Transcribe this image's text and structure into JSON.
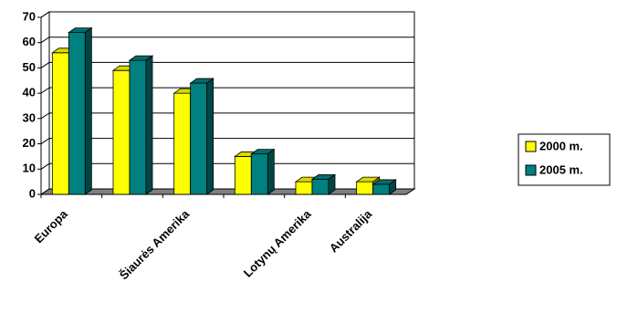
{
  "chart_data": {
    "type": "bar3d",
    "categories": [
      "Europa",
      null,
      "Šiaurės Amerika",
      null,
      "Lotynų Amerika",
      "Australija"
    ],
    "series": [
      {
        "name": "2000 m.",
        "color": "#ffff00",
        "values": [
          56,
          49,
          40,
          15,
          5,
          5
        ]
      },
      {
        "name": "2005 m.",
        "color": "#008080",
        "values": [
          64,
          53,
          44,
          16,
          6,
          4
        ]
      }
    ],
    "ylim": [
      0,
      70
    ],
    "yticks": [
      0,
      10,
      20,
      30,
      40,
      50,
      60,
      70
    ],
    "grid": true,
    "legend": "right"
  }
}
